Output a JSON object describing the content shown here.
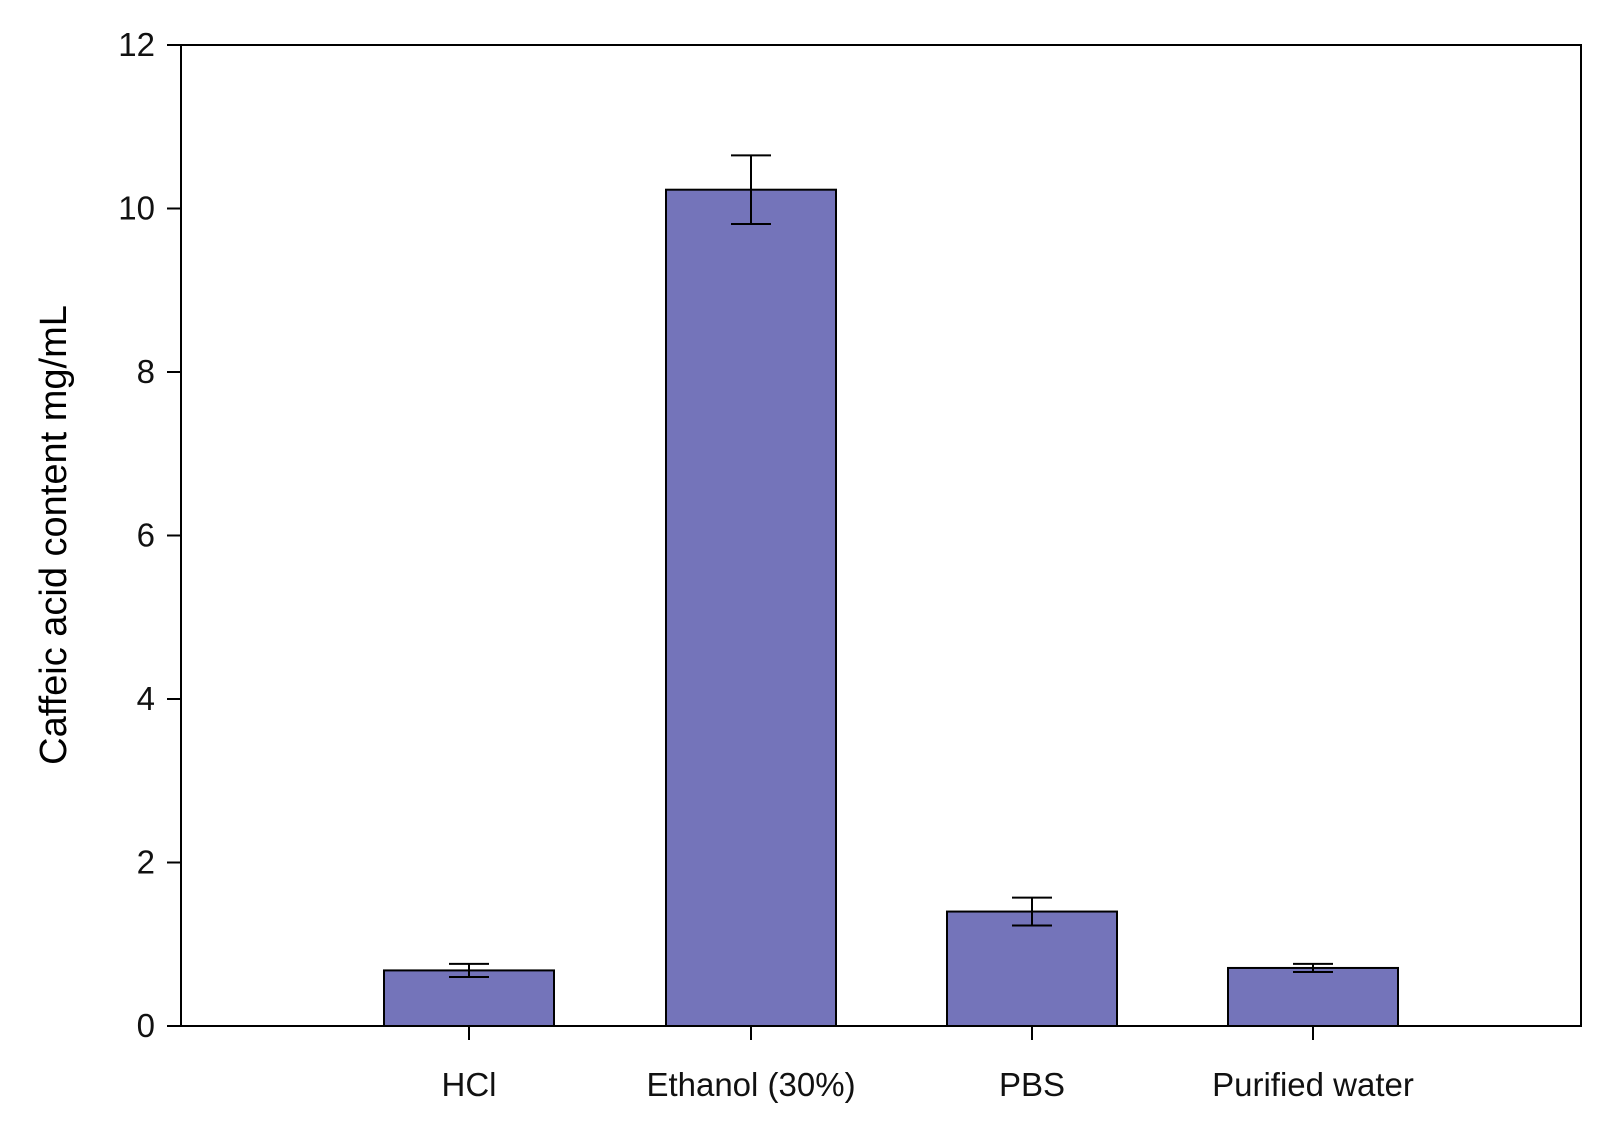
{
  "chart_data": {
    "type": "bar",
    "title": "",
    "xlabel": "",
    "ylabel": "Caffeic acid content mg/mL",
    "categories": [
      "HCl",
      "Ethanol (30%)",
      "PBS",
      "Purified water"
    ],
    "values": [
      0.68,
      10.23,
      1.4,
      0.71
    ],
    "error": [
      0.08,
      0.42,
      0.17,
      0.05
    ],
    "ylim": [
      0,
      12
    ],
    "yticks": [
      "0",
      "2",
      "4",
      "6",
      "8",
      "10",
      "12"
    ],
    "grid": false,
    "legend": "none",
    "colors": {
      "bar_fill": "#7474BA",
      "bar_stroke": "#000000",
      "axis": "#000000"
    }
  }
}
